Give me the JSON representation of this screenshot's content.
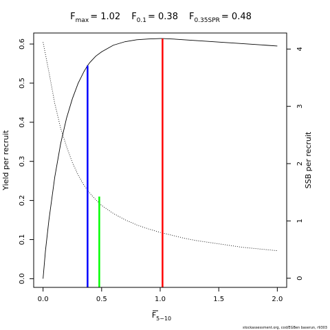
{
  "chart_data": {
    "type": "line",
    "title_parts": [
      {
        "main": "F",
        "sub": "max",
        "value": "= 1.02"
      },
      {
        "main": "F",
        "sub": "0.1",
        "value": "= 0.38"
      },
      {
        "main": "F",
        "sub": "0.35SPR",
        "value": "= 0.48"
      }
    ],
    "xlabel": {
      "main": "F",
      "sub": "5−10"
    },
    "ylabel": "Yield per recruit",
    "y2label": "SSB per recruit",
    "xlim": [
      -0.08,
      2.08
    ],
    "ylim": [
      -0.0222,
      0.6282
    ],
    "y2lim": [
      -0.16,
      4.28
    ],
    "x_ticks": [
      "0.0",
      "0.5",
      "1.0",
      "1.5",
      "2.0"
    ],
    "y_ticks": [
      "0.0",
      "0.1",
      "0.2",
      "0.3",
      "0.4",
      "0.5",
      "0.6"
    ],
    "y2_ticks": [
      "0",
      "1",
      "2",
      "3",
      "4"
    ],
    "grid": false,
    "series": [
      {
        "axis": "left",
        "style": "solid",
        "color": "#000000",
        "x": [
          0,
          0.02,
          0.05,
          0.1,
          0.15,
          0.2,
          0.25,
          0.3,
          0.35,
          0.38,
          0.4,
          0.45,
          0.5,
          0.6,
          0.7,
          0.8,
          0.9,
          1.0,
          1.02,
          1.1,
          1.2,
          1.3,
          1.4,
          1.5,
          1.6,
          1.7,
          1.8,
          1.9,
          2.0
        ],
        "values": [
          0.0,
          0.07,
          0.15,
          0.26,
          0.345,
          0.41,
          0.46,
          0.5,
          0.53,
          0.545,
          0.553,
          0.569,
          0.58,
          0.597,
          0.606,
          0.611,
          0.613,
          0.614,
          0.614,
          0.613,
          0.611,
          0.609,
          0.607,
          0.605,
          0.603,
          0.601,
          0.599,
          0.597,
          0.595
        ]
      },
      {
        "axis": "right",
        "style": "dotted",
        "color": "#000000",
        "x": [
          0,
          0.05,
          0.1,
          0.15,
          0.2,
          0.25,
          0.3,
          0.35,
          0.4,
          0.45,
          0.48,
          0.5,
          0.6,
          0.7,
          0.8,
          0.9,
          1.0,
          1.1,
          1.2,
          1.3,
          1.4,
          1.5,
          1.6,
          1.7,
          1.8,
          1.9,
          2.0
        ],
        "values": [
          4.12,
          3.6,
          3.05,
          2.62,
          2.3,
          2.02,
          1.8,
          1.62,
          1.48,
          1.37,
          1.31,
          1.27,
          1.13,
          1.02,
          0.93,
          0.86,
          0.8,
          0.75,
          0.7,
          0.66,
          0.63,
          0.6,
          0.57,
          0.54,
          0.52,
          0.5,
          0.48
        ]
      }
    ],
    "reference_lines": [
      {
        "x": 0.38,
        "y": 0.545,
        "color": "#0000ff"
      },
      {
        "x": 0.48,
        "y": 0.21,
        "color": "#00ff00"
      },
      {
        "x": 1.02,
        "y": 0.614,
        "color": "#ff0000"
      }
    ],
    "footer": "stockassessment.org, cod/EGBen baserun, r9303"
  }
}
